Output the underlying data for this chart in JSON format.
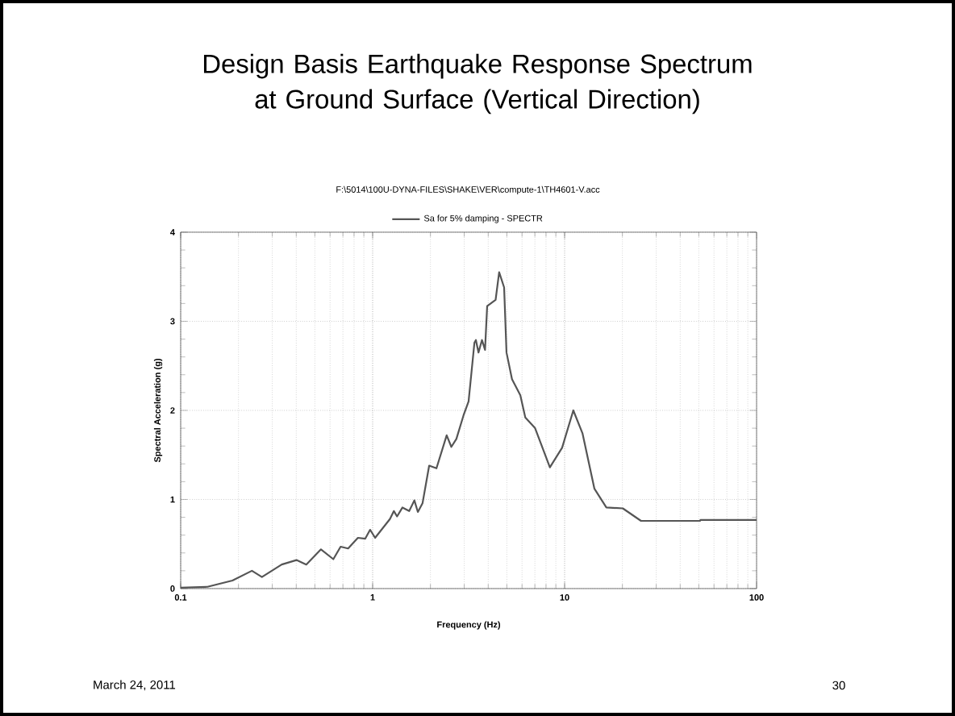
{
  "chart_data": {
    "type": "line",
    "title": "Design Basis Earthquake Response Spectrum at Ground Surface (Vertical Direction)",
    "subtitle": "F:\\5014\\100U-DYNA-FILES\\SHAKE\\VER\\compute-1\\TH4601-V.acc",
    "xlabel": "Frequency (Hz)",
    "ylabel": "Spectral Acceleration (g)",
    "log": "x",
    "xlim": [
      0.1,
      100
    ],
    "xticks": [
      0.1,
      1,
      10,
      100
    ],
    "ylim": [
      0,
      4
    ],
    "yticks": [
      0,
      1,
      2,
      3,
      4
    ],
    "grid": true,
    "legend": "top",
    "annotations": [
      "March 24, 2011",
      "30"
    ],
    "series": [
      {
        "name": "Sa for 5% damping - SPECTR",
        "color": "#555555",
        "x": [
          0.1,
          0.138,
          0.186,
          0.235,
          0.265,
          0.336,
          0.401,
          0.451,
          0.538,
          0.624,
          0.681,
          0.745,
          0.838,
          0.915,
          0.97,
          1.03,
          1.23,
          1.29,
          1.34,
          1.43,
          1.55,
          1.65,
          1.72,
          1.82,
          1.97,
          2.15,
          2.43,
          2.57,
          2.73,
          2.98,
          3.16,
          3.39,
          3.45,
          3.56,
          3.71,
          3.85,
          3.95,
          4.37,
          4.56,
          4.84,
          4.98,
          5.32,
          5.88,
          6.24,
          7.02,
          8.38,
          9.7,
          11.1,
          12.4,
          14.3,
          16.5,
          20.1,
          25,
          50.7,
          51,
          100
        ],
        "values": [
          0.01,
          0.02,
          0.09,
          0.2,
          0.13,
          0.27,
          0.32,
          0.27,
          0.44,
          0.33,
          0.47,
          0.45,
          0.57,
          0.56,
          0.66,
          0.57,
          0.78,
          0.87,
          0.81,
          0.91,
          0.87,
          0.99,
          0.86,
          0.96,
          1.38,
          1.35,
          1.72,
          1.59,
          1.68,
          1.95,
          2.1,
          2.76,
          2.79,
          2.65,
          2.79,
          2.68,
          3.17,
          3.24,
          3.55,
          3.38,
          2.65,
          2.35,
          2.17,
          1.92,
          1.8,
          1.36,
          1.58,
          2.0,
          1.74,
          1.12,
          0.91,
          0.9,
          0.76,
          0.76,
          0.77,
          0.77
        ]
      }
    ]
  }
}
